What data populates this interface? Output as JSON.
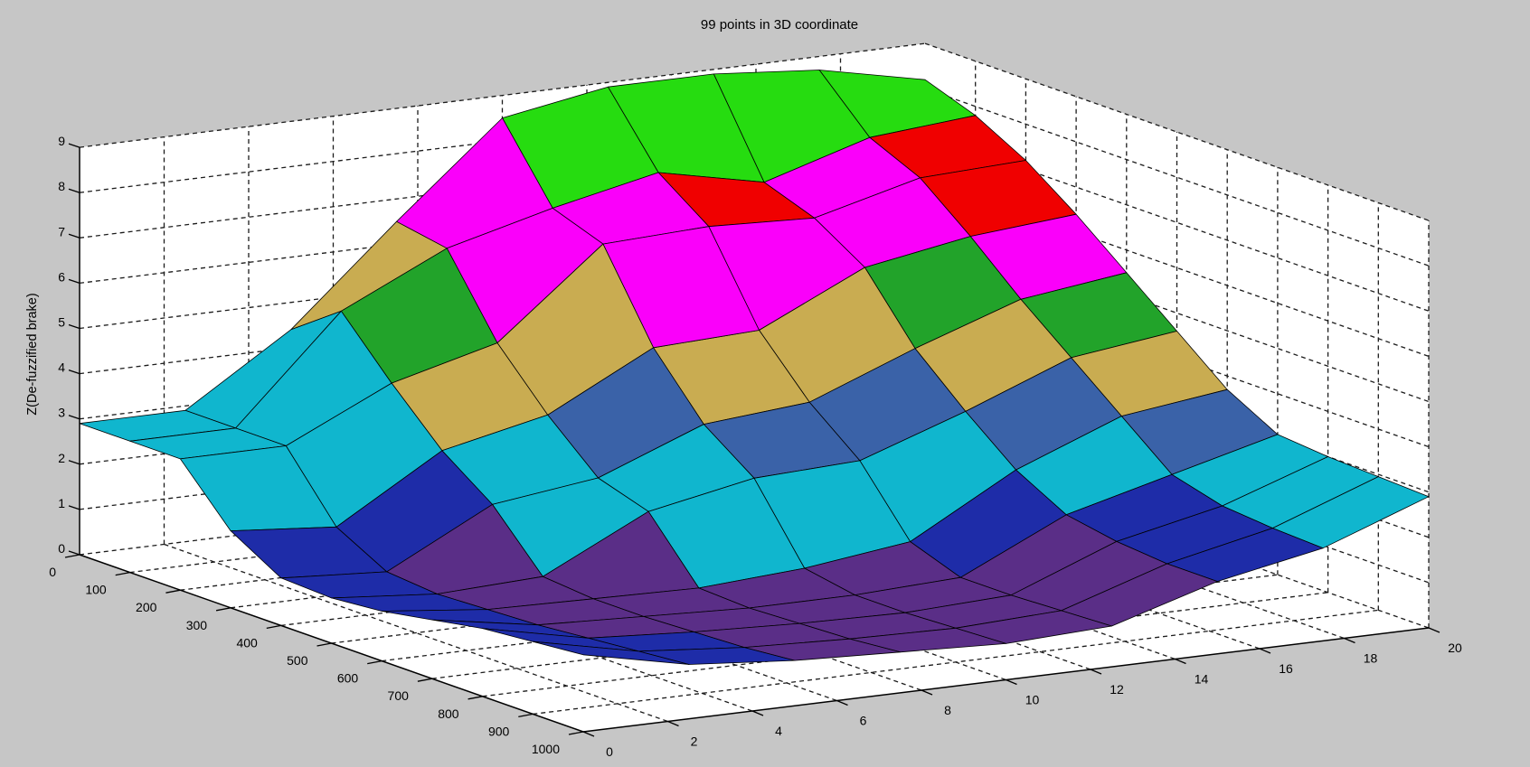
{
  "chart_data": {
    "type": "surface",
    "title": "99 points in 3D coordinate",
    "zlabel": "Z(De-fuzzified brake)",
    "xlim": [
      0,
      20
    ],
    "ylim": [
      0,
      1000
    ],
    "zlim": [
      0,
      9
    ],
    "grid": true,
    "view": {
      "azimuth": -37.5,
      "elevation": 30
    },
    "x_ticks": [
      "0",
      "2",
      "4",
      "6",
      "8",
      "10",
      "12",
      "14",
      "16",
      "18",
      "20"
    ],
    "y_ticks": [
      "0",
      "100",
      "200",
      "300",
      "400",
      "500",
      "600",
      "700",
      "800",
      "900",
      "1000"
    ],
    "z_ticks": [
      "0",
      "1",
      "2",
      "3",
      "4",
      "5",
      "6",
      "7",
      "8",
      "9"
    ],
    "x": [
      0,
      2.5,
      5,
      7.5,
      10,
      12.5,
      15,
      17.5,
      20
    ],
    "y": [
      0,
      100,
      200,
      300,
      400,
      500,
      600,
      700,
      800,
      900,
      1000
    ],
    "z": [
      [
        2.9,
        2.9,
        4.4,
        6.5,
        8.5,
        8.9,
        8.9,
        8.7,
        8.2
      ],
      [
        2.9,
        2.9,
        5.2,
        6.3,
        6.9,
        7.4,
        6.9,
        7.6,
        7.8
      ],
      [
        2.9,
        2.9,
        4.0,
        4.6,
        6.5,
        6.6,
        6.5,
        7.1,
        7.2
      ],
      [
        1.7,
        1.5,
        2.9,
        3.4,
        4.6,
        4.7,
        5.8,
        6.2,
        6.4
      ],
      [
        1.05,
        0.9,
        2.1,
        2.4,
        3.3,
        3.5,
        4.4,
        5.2,
        5.5
      ],
      [
        1.0,
        0.8,
        0.9,
        2.05,
        2.5,
        2.6,
        3.4,
        4.3,
        4.6
      ],
      [
        1.1,
        0.85,
        0.8,
        0.75,
        0.9,
        1.2,
        2.5,
        3.4,
        3.7
      ],
      [
        1.3,
        0.9,
        0.8,
        0.7,
        0.7,
        0.8,
        1.9,
        2.5,
        3.1
      ],
      [
        1.5,
        1.0,
        0.85,
        0.75,
        0.7,
        0.8,
        1.7,
        2.2,
        3.0
      ],
      [
        1.6,
        1.1,
        0.9,
        0.8,
        0.75,
        0.85,
        1.6,
        2.1,
        2.95
      ],
      [
        1.7,
        1.2,
        1.0,
        0.9,
        0.8,
        0.9,
        1.6,
        2.05,
        2.9
      ]
    ],
    "band_colors": [
      "#5A2E87",
      "#1E2CA8",
      "#10B6CE",
      "#3A62A8",
      "#C9AC51",
      "#22A32A",
      "#FA00FA",
      "#F00000",
      "#26DC10"
    ],
    "colors": {
      "background": "#C6C6C6",
      "wall": "#FFFFFF",
      "grid_line": "#1C1C1C",
      "axis_line": "#000000",
      "mesh_edge": "#000000",
      "text": "#000000"
    }
  }
}
